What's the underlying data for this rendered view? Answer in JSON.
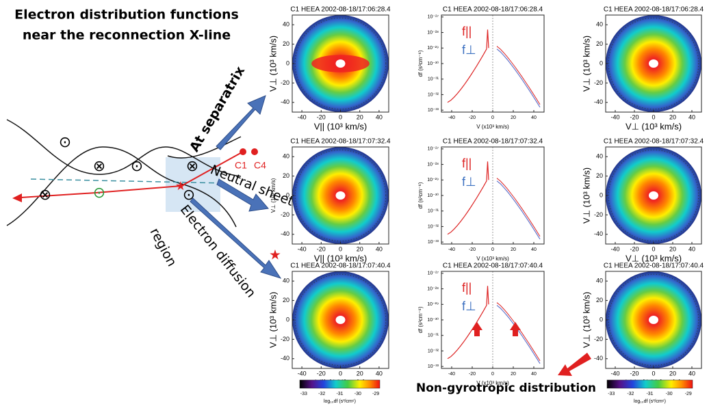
{
  "title": [
    "Electron distribution functions",
    "near the reconnection X-line"
  ],
  "diagram": {
    "spacecraft": [
      "C1",
      "C4"
    ],
    "labels": [
      "At separatrix",
      "Neutral sheet",
      "Electron diffusion",
      "region"
    ]
  },
  "columns": [
    {
      "xticks": [
        -40,
        -20,
        0,
        20,
        40
      ],
      "yticks": [
        40,
        20,
        0,
        -20,
        -40
      ]
    },
    {
      "xticks": [
        -40,
        -20,
        0,
        20,
        40
      ],
      "yticks": [
        "10⁻²⁷",
        "10⁻²⁸",
        "10⁻²⁹",
        "10⁻³⁰",
        "10⁻³¹",
        "10⁻³²",
        "10⁻³³"
      ]
    },
    {
      "xticks": [
        -40,
        -20,
        0,
        20,
        40
      ],
      "yticks": [
        40,
        20,
        0,
        -20,
        -40
      ]
    }
  ],
  "panels": [
    [
      {
        "title": "C1 HEEA 2002-08-18/17:06:28.4",
        "xlabel": "V|| (10³ km/s)",
        "ylabel": "V⊥ (10³ km/s)"
      },
      {
        "title": "C1 HEEA 2002-08-18/17:06:28.4",
        "xlabel": "V (x10³ km/s)",
        "ylabel": "df (s³cm⁻⁶)",
        "legend": [
          "f||",
          "f⊥"
        ]
      },
      {
        "title": "C1 HEEA 2002-08-18/17:06:28.4",
        "xlabel": "V⊥ (10³ km/s)",
        "ylabel": "V⊥ (10³ km/s)"
      }
    ],
    [
      {
        "title": "C1 HEEA 2002-08-18/17:07:32.4",
        "xlabel": "V|| (10³ km/s)",
        "ylabel": "V⊥ (10³ km/s)"
      },
      {
        "title": "C1 HEEA 2002-08-18/17:07:32.4",
        "xlabel": "V (x10³ km/s)",
        "ylabel": "df (s³cm⁻⁶)",
        "legend": [
          "f||",
          "f⊥"
        ]
      },
      {
        "title": "C1 HEEA 2002-08-18/17:07:32.4",
        "xlabel": "V⊥ (10³ km/s)",
        "ylabel": "V⊥ (10³ km/s)"
      }
    ],
    [
      {
        "title": "C1 HEEA 2002-08-18/17:07:40.4",
        "xlabel": "V|| (10³km/s)",
        "ylabel": "V⊥ (10³ km/s)"
      },
      {
        "title": "C1 HEEA 2002-08-18/17:07:40.4",
        "xlabel": "V (x10³ km/s)",
        "ylabel": "df (s³cm⁻⁶)",
        "legend": [
          "f||",
          "f⊥"
        ]
      },
      {
        "title": "C1 HEEA 2002-08-18/17:07:40.4",
        "xlabel": "V⊥ (10³ km/s)",
        "ylabel": "V⊥ (10³ km/s)"
      }
    ]
  ],
  "colorbar": {
    "ticks": [
      -33,
      -32,
      -31,
      -30,
      -29
    ],
    "label": "log₁₀df (s³/cm⁶)"
  },
  "annotation": "Non-gyrotropic distribution"
}
